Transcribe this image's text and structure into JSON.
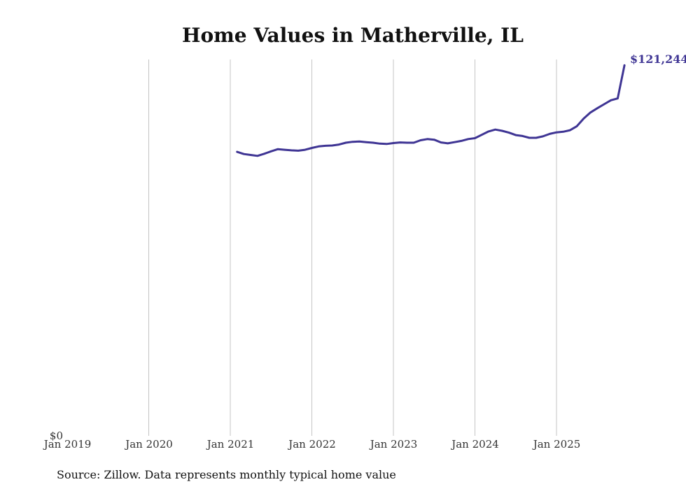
{
  "chart_data": {
    "type": "line",
    "title": "Home Values in Matherville, IL",
    "source": "Source: Zillow. Data represents monthly typical home value",
    "xlabel": "",
    "ylabel": "",
    "x_ticks": [
      "Jan 2019",
      "Jan 2020",
      "Jan 2021",
      "Jan 2022",
      "Jan 2023",
      "Jan 2024",
      "Jan 2025"
    ],
    "y_tick_label": "$0",
    "ylim": [
      0,
      122000
    ],
    "grid": "vertical",
    "end_label": "$121,244",
    "line_color": "#3f3594",
    "series": [
      {
        "name": "Typical home value",
        "start": "Feb 2021",
        "frequency": "monthly",
        "values": [
          92900,
          92200,
          91900,
          91600,
          92300,
          93100,
          93800,
          93600,
          93400,
          93300,
          93600,
          94200,
          94700,
          94900,
          95000,
          95300,
          95900,
          96200,
          96300,
          96100,
          95900,
          95600,
          95500,
          95800,
          96000,
          95900,
          95900,
          96700,
          97100,
          96900,
          96000,
          95700,
          96100,
          96500,
          97100,
          97400,
          98500,
          99600,
          100200,
          99800,
          99200,
          98400,
          98100,
          97500,
          97500,
          98000,
          98800,
          99300,
          99500,
          100000,
          101300,
          103800,
          105800,
          107200,
          108500,
          109800,
          110400,
          121244
        ]
      }
    ]
  }
}
